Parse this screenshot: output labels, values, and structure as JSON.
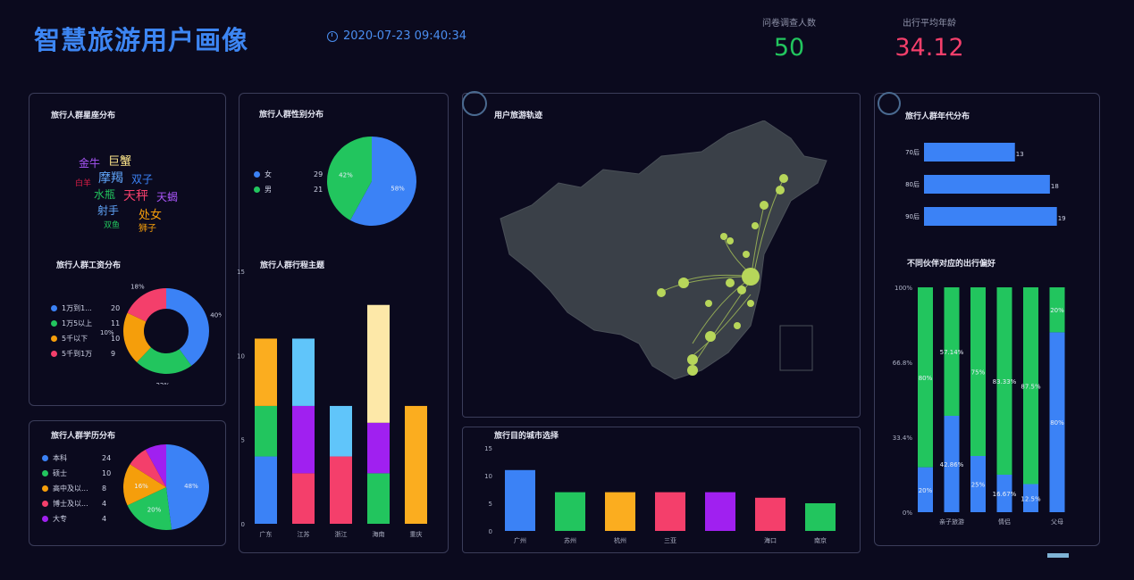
{
  "header": {
    "title": "智慧旅游用户画像",
    "datetime": "2020-07-23 09:40:34",
    "kpis": [
      {
        "label": "问卷调查人数",
        "value": "50",
        "color": "#22c55e"
      },
      {
        "label": "出行平均年龄",
        "value": "34.12",
        "color": "#f43f6b"
      }
    ]
  },
  "panels": {
    "zodiac": {
      "title": "旅行人群星座分布",
      "words": [
        {
          "text": "金牛",
          "color": "#a855f7"
        },
        {
          "text": "巨蟹",
          "color": "#fde68a"
        },
        {
          "text": "白羊",
          "color": "#e11d48"
        },
        {
          "text": "摩羯",
          "color": "#60a5fa"
        },
        {
          "text": "双子",
          "color": "#3b82f6"
        },
        {
          "text": "水瓶",
          "color": "#22c55e"
        },
        {
          "text": "天秤",
          "color": "#f43f6b"
        },
        {
          "text": "天蝎",
          "color": "#a855f7"
        },
        {
          "text": "射手",
          "color": "#60a5fa"
        },
        {
          "text": "处女",
          "color": "#f59e0b"
        },
        {
          "text": "双鱼",
          "color": "#22c55e"
        },
        {
          "text": "狮子",
          "color": "#f59e0b"
        }
      ]
    },
    "salary": {
      "title": "旅行人群工资分布",
      "extra_label": "10%"
    },
    "education": {
      "title": "旅行人群学历分布"
    },
    "gender": {
      "title": "旅行人群性别分布"
    },
    "theme": {
      "title": "旅行人群行程主题"
    },
    "track": {
      "title": "用户旅游轨迹"
    },
    "city": {
      "title": "旅行目的城市选择"
    },
    "age": {
      "title": "旅行人群年代分布"
    },
    "partner": {
      "title": "不同伙伴对应的出行偏好"
    }
  },
  "chart_data": [
    {
      "id": "salary",
      "type": "pie",
      "title": "旅行人群工资分布",
      "labels": [
        "1万到1...",
        "1万5以上",
        "5千以下",
        "5千到1万"
      ],
      "values": [
        20,
        11,
        10,
        9
      ],
      "slice_labels": [
        "40%",
        "22%",
        "",
        "18%"
      ],
      "colors": [
        "#3b82f6",
        "#22c55e",
        "#f59e0b",
        "#f43f6b"
      ],
      "donut": true
    },
    {
      "id": "education",
      "type": "pie",
      "title": "旅行人群学历分布",
      "labels": [
        "本科",
        "硕士",
        "高中及以...",
        "博士及以...",
        "大专"
      ],
      "values": [
        24,
        10,
        8,
        4,
        4
      ],
      "slice_labels": [
        "48%",
        "20%",
        "16%",
        "",
        ""
      ],
      "colors": [
        "#3b82f6",
        "#22c55e",
        "#f59e0b",
        "#f43f6b",
        "#a020f0"
      ]
    },
    {
      "id": "gender",
      "type": "pie",
      "title": "旅行人群性别分布",
      "labels": [
        "女",
        "男"
      ],
      "values": [
        29,
        21
      ],
      "slice_labels": [
        "58%",
        "42%"
      ],
      "colors": [
        "#3b82f6",
        "#22c55e"
      ]
    },
    {
      "id": "theme",
      "type": "bar",
      "stacked": true,
      "title": "旅行人群行程主题",
      "categories": [
        "广东",
        "江苏",
        "浙江",
        "海南",
        "重庆"
      ],
      "ylim": [
        0,
        15
      ],
      "yticks": [
        0,
        5,
        10,
        15
      ],
      "series": [
        {
          "values": [
            4,
            0,
            0,
            0,
            0
          ],
          "color": "#3b82f6"
        },
        {
          "values": [
            3,
            0,
            0,
            3,
            0
          ],
          "color": "#22c55e"
        },
        {
          "values": [
            0,
            3,
            4,
            0,
            0
          ],
          "color": "#f43f6b"
        },
        {
          "values": [
            0,
            4,
            0,
            3,
            0
          ],
          "color": "#a020f0"
        },
        {
          "values": [
            0,
            4,
            3,
            0,
            0
          ],
          "color": "#60c5fa"
        },
        {
          "values": [
            4,
            0,
            0,
            0,
            7
          ],
          "color": "#fbad1f"
        },
        {
          "values": [
            0,
            0,
            0,
            7,
            0
          ],
          "color": "#fde8a8"
        }
      ]
    },
    {
      "id": "city",
      "type": "bar",
      "title": "旅行目的城市选择",
      "categories": [
        "广州",
        "苏州",
        "杭州",
        "三亚",
        "",
        "海口",
        "南京"
      ],
      "values": [
        11,
        7,
        7,
        7,
        7,
        6,
        5
      ],
      "colors": [
        "#3b82f6",
        "#22c55e",
        "#fbad1f",
        "#f43f6b",
        "#a020f0",
        "#f43f6b",
        "#22c55e"
      ],
      "ylim": [
        0,
        15
      ],
      "yticks": [
        0,
        5,
        10,
        15
      ]
    },
    {
      "id": "age",
      "type": "bar",
      "orientation": "horizontal",
      "title": "旅行人群年代分布",
      "categories": [
        "70后",
        "80后",
        "90后"
      ],
      "values": [
        13,
        18,
        19
      ],
      "xlim": [
        0,
        23
      ],
      "color": "#3b82f6"
    },
    {
      "id": "partner",
      "type": "bar",
      "stacked": true,
      "percent": true,
      "title": "不同伙伴对应的出行偏好",
      "categories": [
        "",
        "亲子旅游",
        "",
        "情侣",
        "",
        "父母"
      ],
      "yticks": [
        "0%",
        "33.4%",
        "66.8%",
        "100%"
      ],
      "series": [
        {
          "values": [
            20,
            42.86,
            25,
            16.67,
            12.5,
            80
          ],
          "labels": [
            "20%",
            "42.86%",
            "25%",
            "16.67%",
            "12.5%",
            "80%"
          ],
          "color": "#3b82f6"
        },
        {
          "values": [
            80,
            57.14,
            75,
            83.33,
            87.5,
            20
          ],
          "labels": [
            "80%",
            "57.14%",
            "75%",
            "83.33%",
            "87.5%",
            "20%"
          ],
          "color": "#22c55e"
        }
      ]
    }
  ]
}
